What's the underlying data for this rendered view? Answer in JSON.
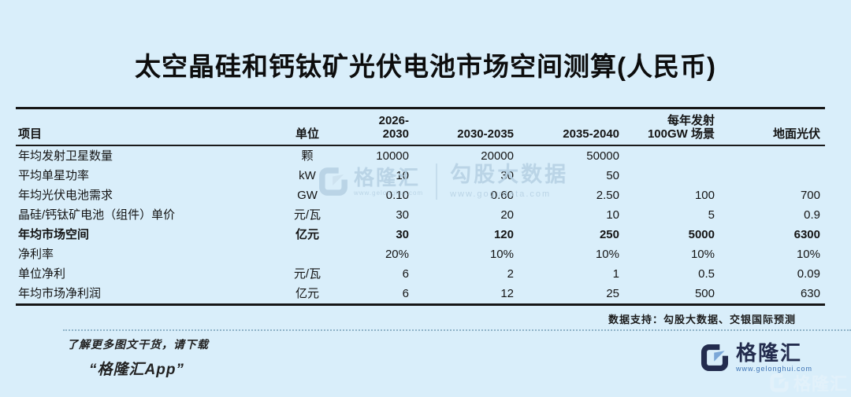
{
  "title": "太空晶硅和钙钛矿光伏电池市场空间测算(人民币)",
  "table": {
    "headers": {
      "item": "项目",
      "unit": "单位",
      "c1": "2026-2030",
      "c2": "2030-2035",
      "c3": "2035-2040",
      "c4_line1": "每年发射",
      "c4_line2": "100GW 场景",
      "c5": "地面光伏"
    },
    "rows": [
      {
        "name": "年均发射卫星数量",
        "unit": "颗",
        "values": [
          "10000",
          "20000",
          "50000",
          "",
          ""
        ],
        "bold": false
      },
      {
        "name": "平均单星功率",
        "unit": "kW",
        "values": [
          "10",
          "30",
          "50",
          "",
          ""
        ],
        "bold": false
      },
      {
        "name": "年均光伏电池需求",
        "unit": "GW",
        "values": [
          "0.10",
          "0.60",
          "2.50",
          "100",
          "700"
        ],
        "bold": false
      },
      {
        "name": "晶硅/钙钛矿电池（组件）单价",
        "unit": "元/瓦",
        "values": [
          "30",
          "20",
          "10",
          "5",
          "0.9"
        ],
        "bold": false
      },
      {
        "name": "年均市场空间",
        "unit": "亿元",
        "values": [
          "30",
          "120",
          "250",
          "5000",
          "6300"
        ],
        "bold": true
      },
      {
        "name": "净利率",
        "unit": "",
        "values": [
          "20%",
          "10%",
          "10%",
          "10%",
          "10%"
        ],
        "bold": false
      },
      {
        "name": "单位净利",
        "unit": "元/瓦",
        "values": [
          "6",
          "2",
          "1",
          "0.5",
          "0.09"
        ],
        "bold": false
      },
      {
        "name": "年均市场净利润",
        "unit": "亿元",
        "values": [
          "6",
          "12",
          "25",
          "500",
          "630"
        ],
        "bold": false
      }
    ]
  },
  "footer": {
    "source": "数据支持：勾股大数据、交银国际预测"
  },
  "promo": {
    "line1": "了解更多图文干货，请下载",
    "line2": "“格隆汇App”"
  },
  "brand": {
    "name": "格隆汇",
    "url": "www.gelonghui.com"
  },
  "watermark": {
    "center_brand": "格隆汇",
    "center_brand_url": "www.gelonghui.com",
    "center_text": "勾股大数据",
    "center_url": "www.gogudata.com",
    "corner_brand": "格隆汇"
  },
  "colors": {
    "background": "#d9eefa",
    "text": "#141414",
    "navy": "#232c4e",
    "link_blue": "#3c72b4",
    "watermark": "#b7d2e4"
  }
}
